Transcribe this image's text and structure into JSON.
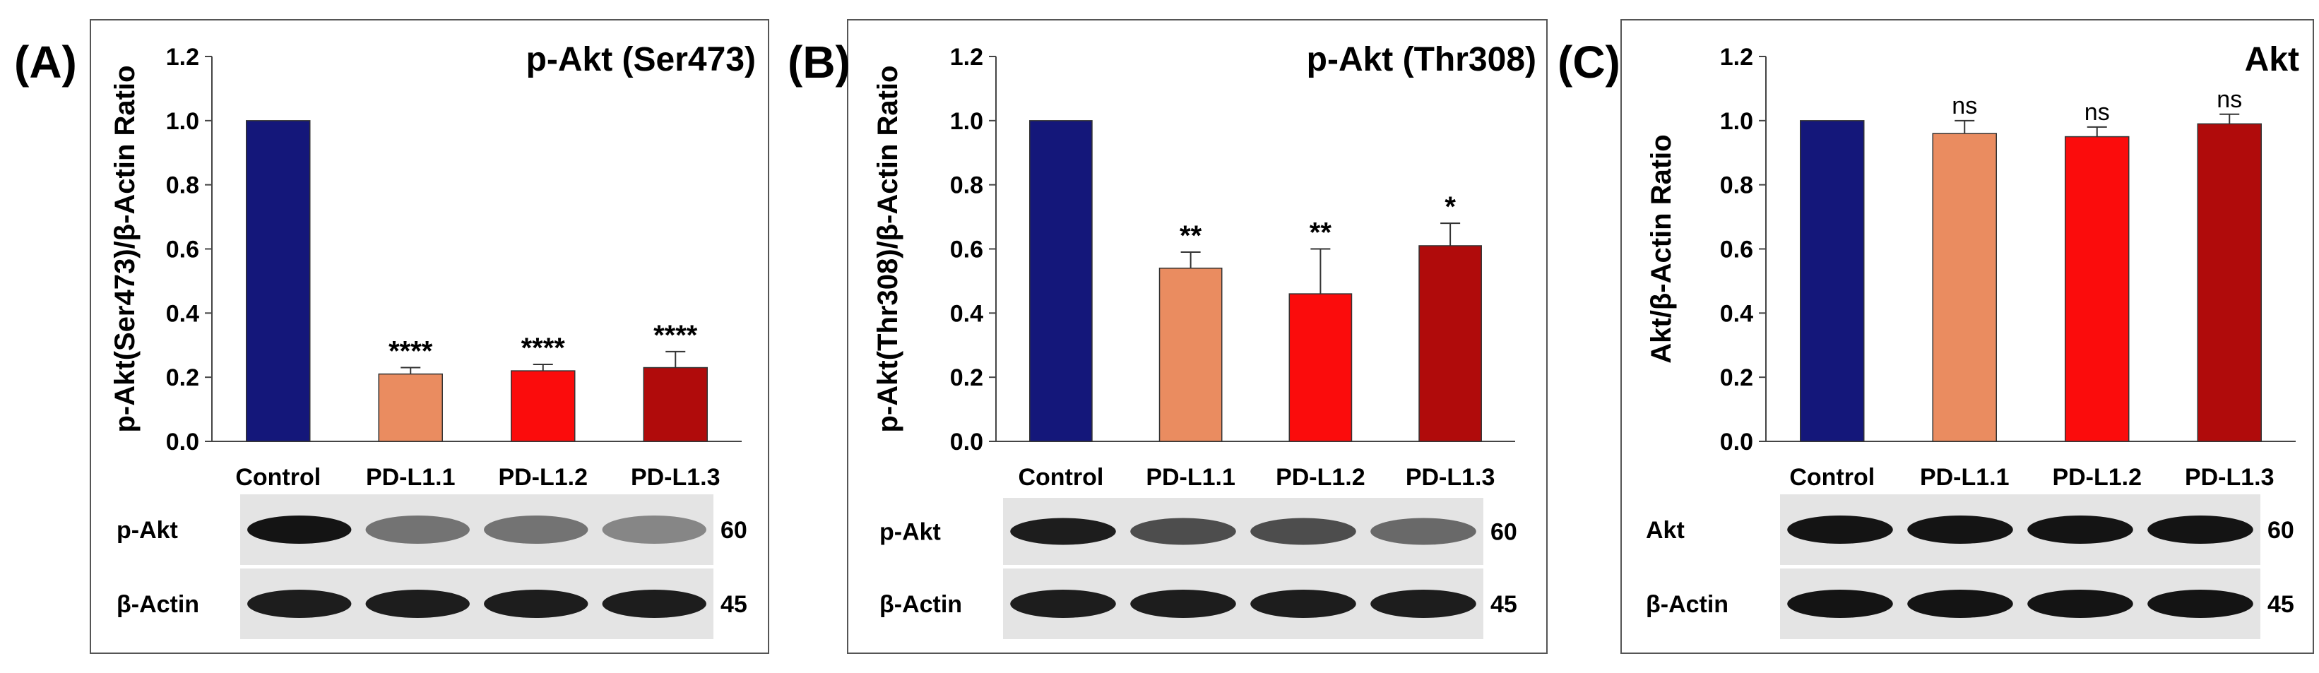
{
  "chart_data": [
    {
      "type": "bar",
      "panel_label": "(A)",
      "title": "p-Akt (Ser473)",
      "ylabel": "p-Akt(Ser473)/β-Actin Ratio",
      "xlabel": "",
      "ylim": [
        0,
        1.2
      ],
      "yticks": [
        "0.0",
        "0.2",
        "0.4",
        "0.6",
        "0.8",
        "1.0",
        "1.2"
      ],
      "categories": [
        "Control",
        "PD-L1.1",
        "PD-L1.2",
        "PD-L1.3"
      ],
      "values": [
        1.0,
        0.21,
        0.22,
        0.23
      ],
      "errors": [
        0,
        0.02,
        0.02,
        0.05
      ],
      "significance": [
        "",
        "****",
        "****",
        "****"
      ],
      "colors": [
        "#14177a",
        "#ea8c60",
        "#fb0c0c",
        "#b00b0b"
      ],
      "blots": [
        {
          "label": "p-Akt",
          "kda": "60",
          "intensity": [
            0.95,
            0.45,
            0.45,
            0.35
          ]
        },
        {
          "label": "β-Actin",
          "kda": "45",
          "intensity": [
            0.9,
            0.9,
            0.9,
            0.9
          ]
        }
      ]
    },
    {
      "type": "bar",
      "panel_label": "(B)",
      "title": "p-Akt (Thr308)",
      "ylabel": "p-Akt(Thr308)/β-Actin Ratio",
      "xlabel": "",
      "ylim": [
        0,
        1.2
      ],
      "yticks": [
        "0.0",
        "0.2",
        "0.4",
        "0.6",
        "0.8",
        "1.0",
        "1.2"
      ],
      "categories": [
        "Control",
        "PD-L1.1",
        "PD-L1.2",
        "PD-L1.3"
      ],
      "values": [
        1.0,
        0.54,
        0.46,
        0.61
      ],
      "errors": [
        0,
        0.05,
        0.14,
        0.07
      ],
      "significance": [
        "",
        "**",
        "**",
        "*"
      ],
      "colors": [
        "#14177a",
        "#ea8c60",
        "#fb0c0c",
        "#b00b0b"
      ],
      "blots": [
        {
          "label": "p-Akt",
          "kda": "60",
          "intensity": [
            0.9,
            0.65,
            0.65,
            0.5
          ]
        },
        {
          "label": "β-Actin",
          "kda": "45",
          "intensity": [
            0.9,
            0.9,
            0.9,
            0.9
          ]
        }
      ]
    },
    {
      "type": "bar",
      "panel_label": "(C)",
      "title": "Akt",
      "ylabel": "Akt/β-Actin Ratio",
      "xlabel": "",
      "ylim": [
        0,
        1.2
      ],
      "yticks": [
        "0.0",
        "0.2",
        "0.4",
        "0.6",
        "0.8",
        "1.0",
        "1.2"
      ],
      "categories": [
        "Control",
        "PD-L1.1",
        "PD-L1.2",
        "PD-L1.3"
      ],
      "values": [
        1.0,
        0.96,
        0.95,
        0.99
      ],
      "errors": [
        0,
        0.04,
        0.03,
        0.03
      ],
      "significance": [
        "",
        "ns",
        "ns",
        "ns"
      ],
      "colors": [
        "#14177a",
        "#ea8c60",
        "#fb0c0c",
        "#b00b0b"
      ],
      "blots": [
        {
          "label": "Akt",
          "kda": "60",
          "intensity": [
            0.95,
            0.95,
            0.95,
            0.95
          ]
        },
        {
          "label": "β-Actin",
          "kda": "45",
          "intensity": [
            0.95,
            0.95,
            0.95,
            0.95
          ]
        }
      ]
    }
  ]
}
